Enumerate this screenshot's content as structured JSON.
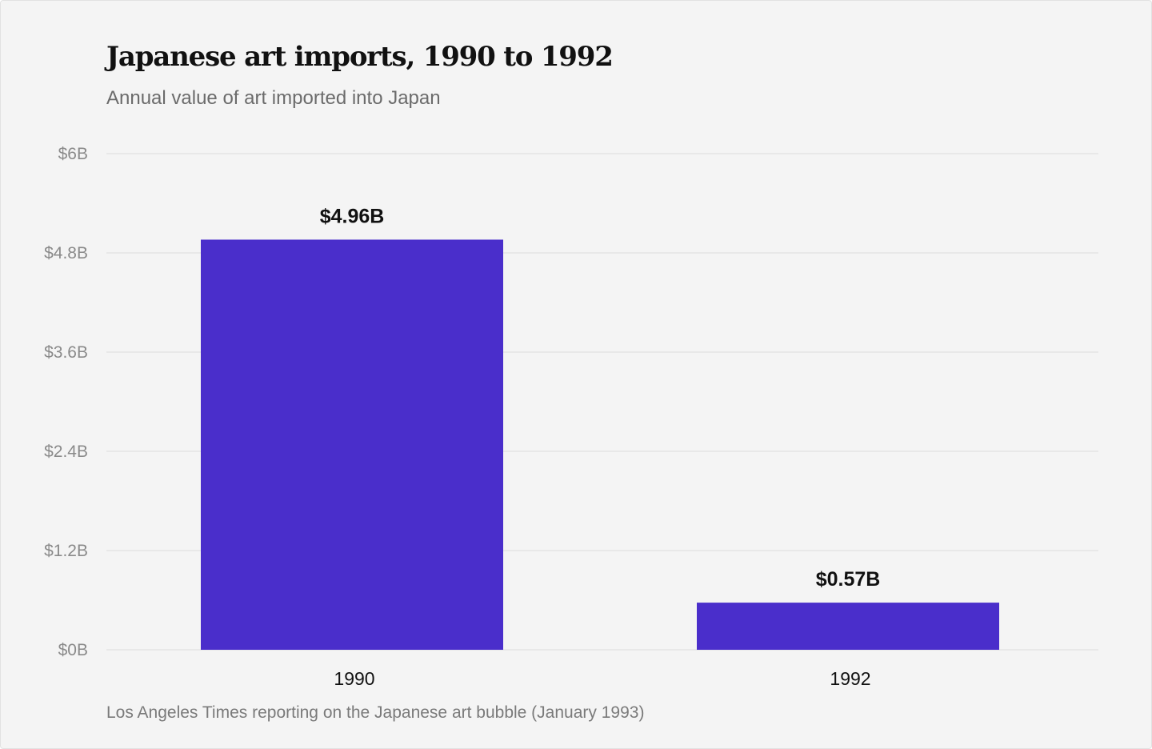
{
  "chart_data": {
    "type": "bar",
    "title": "Japanese art imports, 1990 to 1992",
    "subtitle": "Annual value of art imported into Japan",
    "source": "Los Angeles Times reporting on the Japanese art bubble (January 1993)",
    "categories": [
      "1990",
      "1992"
    ],
    "values": [
      4.96,
      0.57
    ],
    "value_labels": [
      "$4.96B",
      "$0.57B"
    ],
    "ylim": [
      0,
      6
    ],
    "yticks": [
      0,
      1.2,
      2.4,
      3.6,
      4.8,
      6
    ],
    "ytick_labels": [
      "$0B",
      "$1.2B",
      "$2.4B",
      "$3.6B",
      "$4.8B",
      "$6B"
    ],
    "xlabel": "",
    "ylabel": "",
    "grid": true,
    "bar_color": "#4a2ecb",
    "grid_color": "#e3e3e3"
  }
}
